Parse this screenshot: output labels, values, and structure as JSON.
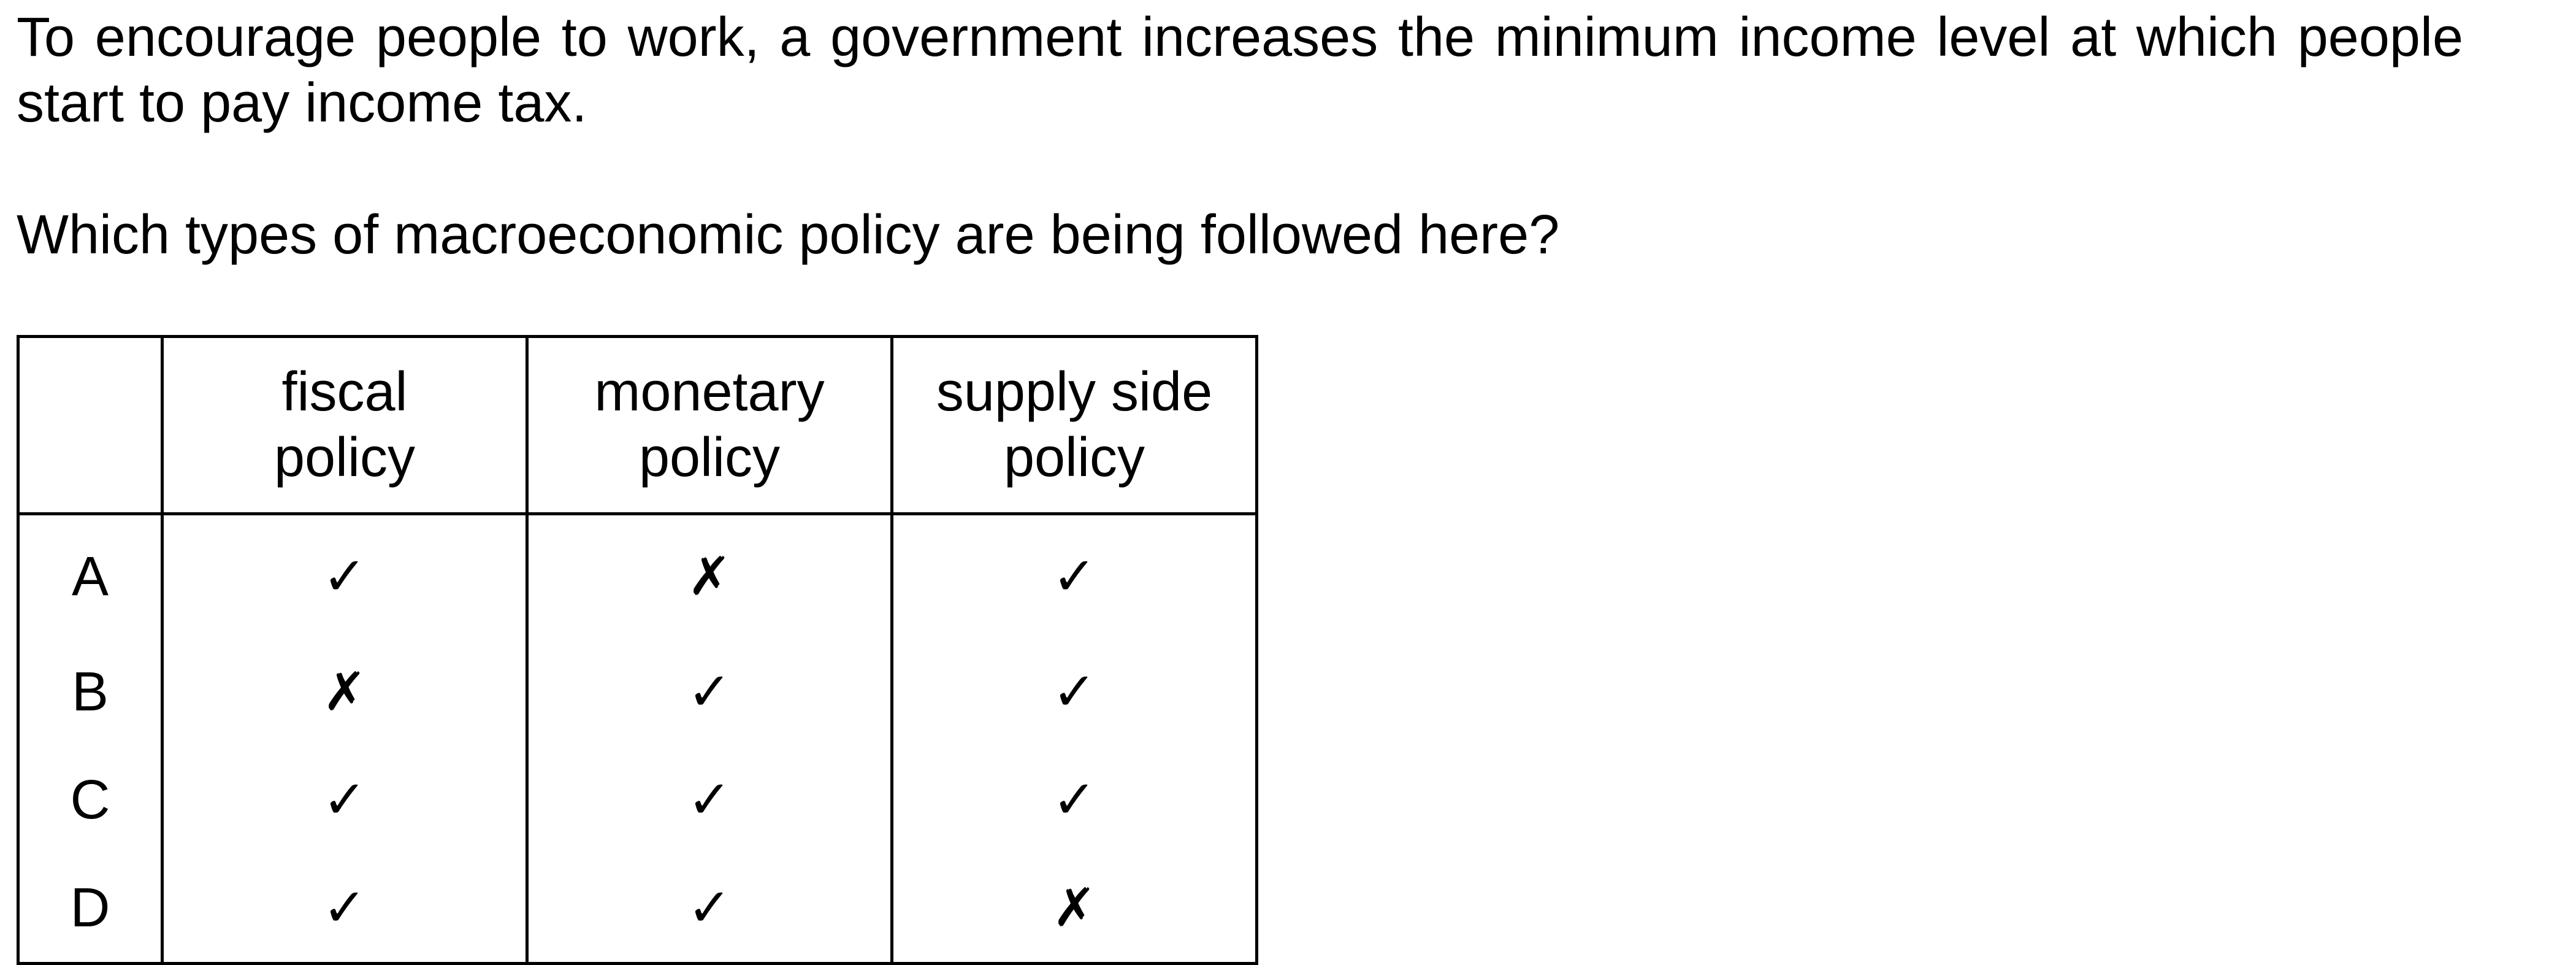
{
  "question": {
    "stem": "To encourage people to work, a government increases the minimum income level at which people start to pay income tax.",
    "prompt": "Which types of macroeconomic policy are being followed here?"
  },
  "table": {
    "corner": "",
    "columns": [
      {
        "line1": "fiscal",
        "line2": "policy"
      },
      {
        "line1": "monetary",
        "line2": "policy"
      },
      {
        "line1": "supply side",
        "line2": "policy"
      }
    ],
    "rows": [
      {
        "label": "A",
        "marks": [
          "✓",
          "✗",
          "✓"
        ]
      },
      {
        "label": "B",
        "marks": [
          "✗",
          "✓",
          "✓"
        ]
      },
      {
        "label": "C",
        "marks": [
          "✓",
          "✓",
          "✓"
        ]
      },
      {
        "label": "D",
        "marks": [
          "✓",
          "✓",
          "✗"
        ]
      }
    ]
  }
}
